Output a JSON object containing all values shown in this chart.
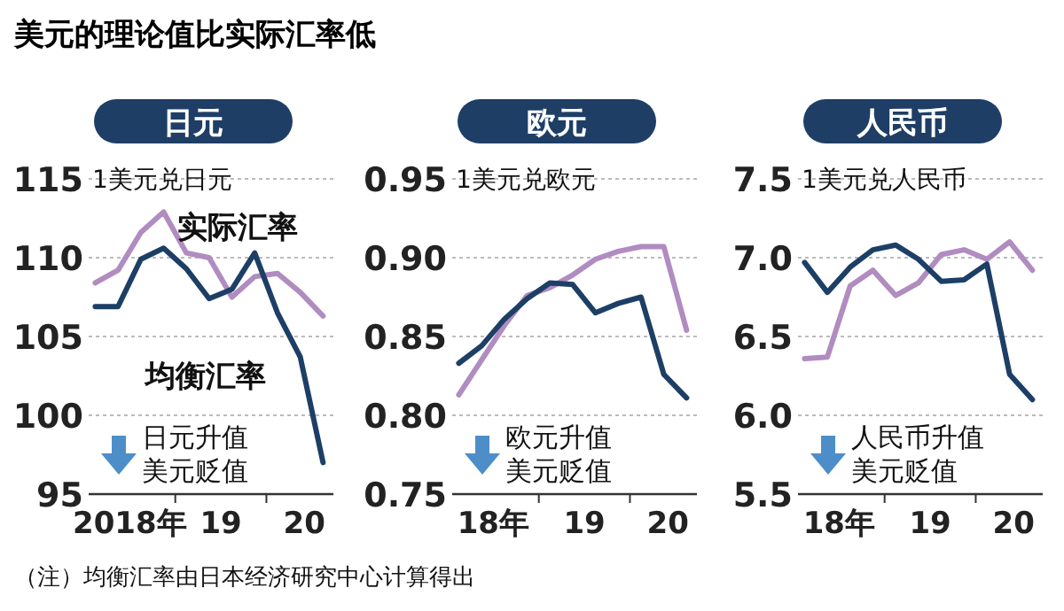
{
  "chart_data": [
    {
      "type": "line",
      "title": "美元的理论值比实际汇率低",
      "subtitle": "日元",
      "x": [
        "2018-02-15",
        "2018-05-15",
        "2018-08-15",
        "2018-11-15",
        "2019-02-15",
        "2019-05-15",
        "2019-08-15",
        "2019-11-15",
        "2020-02-15",
        "2020-05-15",
        "2020-08-15"
      ],
      "xlim": [
        "2018-01-19",
        "2020-09-26"
      ],
      "xticks": [
        {
          "value": "2018-07-01",
          "label": "2018年"
        },
        {
          "value": "2019-01-01",
          "label": null
        },
        {
          "value": "2019-07-01",
          "label": "19"
        },
        {
          "value": "2020-01-01",
          "label": null
        },
        {
          "value": "2020-06-01",
          "label": "20"
        }
      ],
      "ylim": [
        95,
        115
      ],
      "yticks": [
        95,
        100,
        105,
        110,
        115
      ],
      "grid": "y",
      "legend": false,
      "marker": "none",
      "line_style": "solid",
      "series": [
        {
          "name": "实际汇率",
          "color": "#b08cc0",
          "values": [
            108.4,
            109.2,
            111.6,
            112.9,
            110.3,
            110.0,
            107.5,
            108.8,
            109.0,
            107.8,
            106.3
          ]
        },
        {
          "name": "均衡汇率",
          "color": "#1d3f66",
          "values": [
            106.9,
            106.9,
            109.9,
            110.6,
            109.3,
            107.4,
            108.0,
            110.3,
            106.5,
            103.7,
            97.0
          ]
        }
      ],
      "annotations": [
        "1美元兑日元",
        "日元升值",
        "美元贬值",
        "（注）均衡汇率由日本经济研究中心计算得出"
      ]
    },
    {
      "type": "line",
      "subtitle": "欧元",
      "x": [
        "2018-02-15",
        "2018-05-15",
        "2018-08-15",
        "2018-11-15",
        "2019-02-15",
        "2019-05-15",
        "2019-08-15",
        "2019-11-15",
        "2020-02-15",
        "2020-05-15",
        "2020-08-15"
      ],
      "xlim": [
        "2018-01-19",
        "2020-09-26"
      ],
      "xticks": [
        {
          "value": "2018-07-01",
          "label": "18年"
        },
        {
          "value": "2019-01-01",
          "label": null
        },
        {
          "value": "2019-07-01",
          "label": "19"
        },
        {
          "value": "2020-01-01",
          "label": null
        },
        {
          "value": "2020-06-01",
          "label": "20"
        }
      ],
      "ylim": [
        0.75,
        0.95
      ],
      "yticks": [
        {
          "value": 0.75,
          "label": "0.75"
        },
        {
          "value": 0.8,
          "label": "0.80"
        },
        {
          "value": 0.85,
          "label": "0.85"
        },
        {
          "value": 0.9,
          "label": "0.90"
        },
        {
          "value": 0.95,
          "label": "0.95"
        }
      ],
      "grid": "y",
      "legend": false,
      "marker": "none",
      "line_style": "solid",
      "series": [
        {
          "color": "#b08cc0",
          "values": [
            0.813,
            0.835,
            0.857,
            0.876,
            0.881,
            0.889,
            0.899,
            0.904,
            0.907,
            0.907,
            0.854
          ]
        },
        {
          "color": "#1d3f66",
          "values": [
            0.833,
            0.844,
            0.861,
            0.874,
            0.884,
            0.883,
            0.865,
            0.871,
            0.875,
            0.826,
            0.811
          ]
        }
      ],
      "annotations": [
        "1美元兑欧元",
        "欧元升值",
        "美元贬值"
      ]
    },
    {
      "type": "line",
      "subtitle": "人民币",
      "x": [
        "2018-02-15",
        "2018-05-15",
        "2018-08-15",
        "2018-11-15",
        "2019-02-15",
        "2019-05-15",
        "2019-08-15",
        "2019-11-15",
        "2020-02-15",
        "2020-05-15",
        "2020-08-15"
      ],
      "xlim": [
        "2018-01-19",
        "2020-09-26"
      ],
      "xticks": [
        {
          "value": "2018-07-01",
          "label": "18年"
        },
        {
          "value": "2019-01-01",
          "label": null
        },
        {
          "value": "2019-07-01",
          "label": "19"
        },
        {
          "value": "2020-01-01",
          "label": null
        },
        {
          "value": "2020-06-01",
          "label": "20"
        }
      ],
      "ylim": [
        5.5,
        7.5
      ],
      "yticks": [
        {
          "value": 5.5,
          "label": "5.5"
        },
        {
          "value": 6,
          "label": "6.0"
        },
        {
          "value": 6.5,
          "label": "6.5"
        },
        {
          "value": 7,
          "label": "7.0"
        },
        {
          "value": 7.5,
          "label": "7.5"
        }
      ],
      "grid": "y",
      "legend": false,
      "marker": "none",
      "line_style": "solid",
      "series": [
        {
          "color": "#b08cc0",
          "values": [
            6.36,
            6.37,
            6.82,
            6.92,
            6.76,
            6.84,
            7.02,
            7.05,
            6.99,
            7.1,
            6.92
          ]
        },
        {
          "color": "#1d3f66",
          "values": [
            6.97,
            6.78,
            6.94,
            7.05,
            7.08,
            6.99,
            6.85,
            6.86,
            6.96,
            6.26,
            6.1
          ]
        }
      ],
      "annotations": [
        "1美元兑人民币",
        "人民币升值",
        "美元贬值"
      ]
    }
  ]
}
